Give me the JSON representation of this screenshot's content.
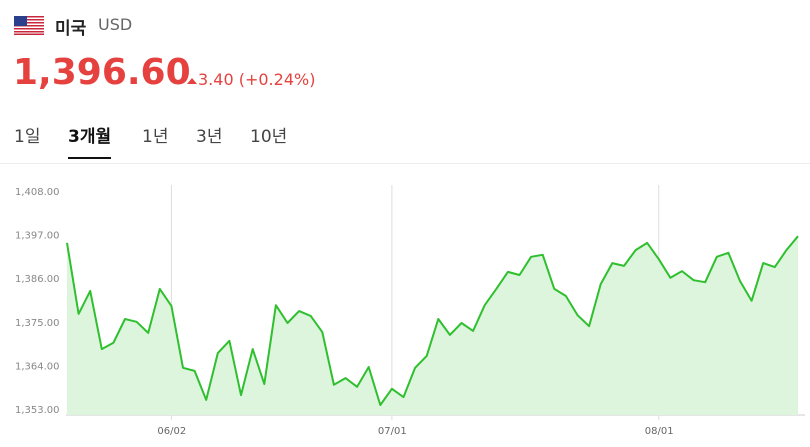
{
  "header": {
    "country": "미국",
    "currency": "USD",
    "price": "1,396.60",
    "change": "3.40",
    "change_pct": "(+0.24%)"
  },
  "tabs": {
    "items": [
      "1일",
      "3개월",
      "1년",
      "3년",
      "10년"
    ],
    "active": 1
  },
  "chart_data": {
    "type": "line",
    "color": "#2fbf2f",
    "fill": "#dcf5dc",
    "categories": [
      null,
      null,
      null,
      null,
      null,
      null,
      null,
      null,
      null,
      "06/02",
      null,
      null,
      null,
      null,
      null,
      null,
      null,
      null,
      null,
      null,
      null,
      null,
      null,
      null,
      null,
      null,
      null,
      null,
      "07/01",
      null,
      null,
      null,
      null,
      null,
      null,
      null,
      null,
      null,
      null,
      null,
      null,
      null,
      null,
      null,
      null,
      null,
      null,
      null,
      null,
      null,
      null,
      "08/01",
      null,
      null,
      null,
      null,
      null,
      null,
      null,
      null,
      null,
      null,
      null,
      null
    ],
    "values": [
      1394.9,
      1377.0,
      1382.8,
      1368.1,
      1369.7,
      1375.7,
      1375.0,
      1372.2,
      1383.3,
      1379.0,
      1363.4,
      1362.6,
      1355.3,
      1367.1,
      1370.2,
      1356.5,
      1368.1,
      1359.3,
      1379.2,
      1374.7,
      1377.7,
      1376.5,
      1372.4,
      1359.1,
      1360.8,
      1358.6,
      1363.6,
      1354.0,
      1358.1,
      1356.0,
      1363.4,
      1366.4,
      1375.7,
      1371.7,
      1374.7,
      1372.7,
      1379.2,
      1383.3,
      1387.6,
      1386.8,
      1391.4,
      1391.9,
      1383.3,
      1381.5,
      1376.7,
      1373.9,
      1384.5,
      1389.8,
      1389.1,
      1393.1,
      1394.9,
      1390.8,
      1386.1,
      1387.8,
      1385.5,
      1385.0,
      1391.4,
      1392.4,
      1385.3,
      1380.3,
      1389.8,
      1388.8,
      1393.1,
      1396.6
    ],
    "ylim": [
      1353,
      1408
    ],
    "yticks": [
      {
        "value": 1353,
        "label": "1,353.00"
      },
      {
        "value": 1364,
        "label": "1,364.00"
      },
      {
        "value": 1375,
        "label": "1,375.00"
      },
      {
        "value": 1386,
        "label": "1,386.00"
      },
      {
        "value": 1397,
        "label": "1,397.00"
      },
      {
        "value": 1408,
        "label": "1,408.00"
      }
    ]
  }
}
